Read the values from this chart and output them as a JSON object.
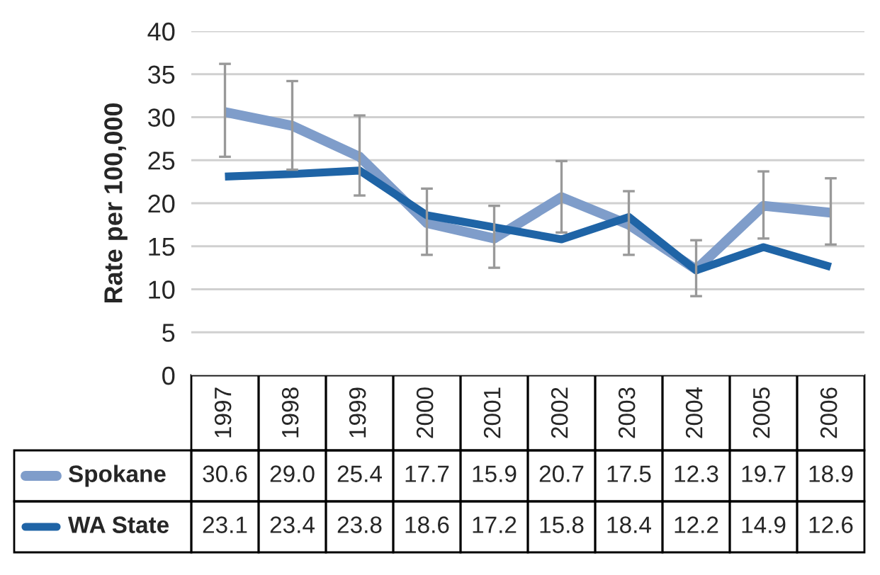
{
  "chart_data": {
    "type": "line",
    "ylabel": "Rate per 100,000",
    "categories": [
      "1997",
      "1998",
      "1999",
      "2000",
      "2001",
      "2002",
      "2003",
      "2004",
      "2005",
      "2006"
    ],
    "series": [
      {
        "name": "Spokane",
        "color": "#7f9dca",
        "values": [
          30.6,
          29.0,
          25.4,
          17.7,
          15.9,
          20.7,
          17.5,
          12.3,
          19.7,
          18.9
        ],
        "value_labels": [
          "30.6",
          "29.0",
          "25.4",
          "17.7",
          "15.9",
          "20.7",
          "17.5",
          "12.3",
          "19.7",
          "18.9"
        ],
        "errors": [
          [
            25.4,
            36.2
          ],
          [
            23.9,
            34.2
          ],
          [
            20.9,
            30.2
          ],
          [
            14.0,
            21.7
          ],
          [
            12.5,
            19.7
          ],
          [
            16.6,
            24.9
          ],
          [
            14.0,
            21.4
          ],
          [
            9.2,
            15.7
          ],
          [
            15.9,
            23.7
          ],
          [
            15.2,
            22.9
          ]
        ]
      },
      {
        "name": "WA State",
        "color": "#1f64a6",
        "values": [
          23.1,
          23.4,
          23.8,
          18.6,
          17.2,
          15.8,
          18.4,
          12.2,
          14.9,
          12.6
        ],
        "value_labels": [
          "23.1",
          "23.4",
          "23.8",
          "18.6",
          "17.2",
          "15.8",
          "18.4",
          "12.2",
          "14.9",
          "12.6"
        ]
      }
    ],
    "ylim": [
      0,
      40
    ],
    "yticks": [
      0,
      5,
      10,
      15,
      20,
      25,
      30,
      35,
      40
    ],
    "grid": "y",
    "legend": "bottom",
    "marker": "none",
    "line_style": "solid"
  }
}
